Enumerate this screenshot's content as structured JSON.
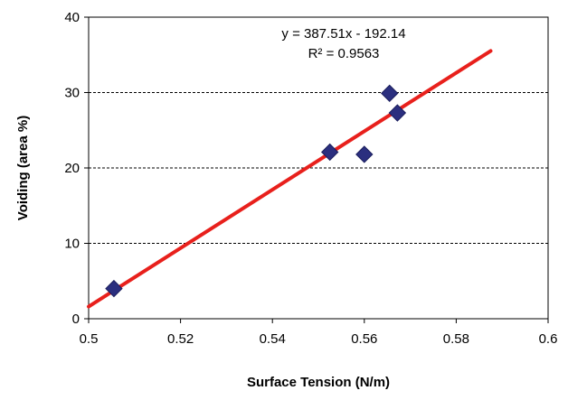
{
  "chart_data": {
    "type": "scatter",
    "title": "",
    "xlabel": "Surface Tension (N/m)",
    "ylabel": "Voiding (area %)",
    "xlim": [
      0.5,
      0.6
    ],
    "ylim": [
      0,
      40
    ],
    "x_ticks": [
      "0.5",
      "0.52",
      "0.54",
      "0.56",
      "0.58",
      "0.6"
    ],
    "y_ticks": [
      "0",
      "10",
      "20",
      "30",
      "40"
    ],
    "grid": "horizontal dashed at 10, 20, 30",
    "legend": "none",
    "series": [
      {
        "x": [
          0.5055,
          0.5525,
          0.56,
          0.5655,
          0.5672
        ],
        "y": [
          4.0,
          22.1,
          21.8,
          29.9,
          27.3
        ],
        "marker": "diamond",
        "color": "#2b2f7f"
      }
    ],
    "trendline": {
      "equation": "y = 387.51x - 192.14",
      "r_squared": "R² = 0.9563",
      "slope": 387.51,
      "intercept": -192.14,
      "x_range": [
        0.5,
        0.5875
      ],
      "color": "#e8201c"
    }
  }
}
